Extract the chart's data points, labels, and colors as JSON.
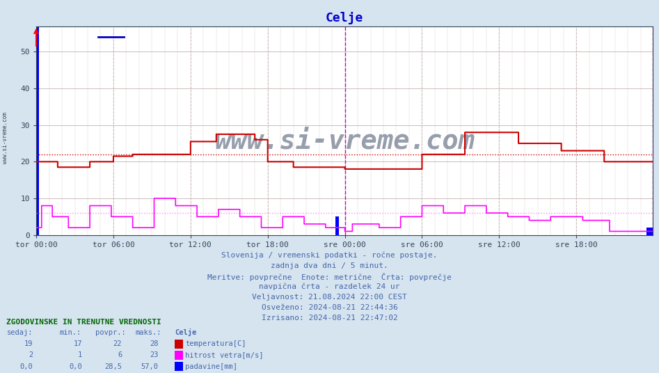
{
  "title": "Celje",
  "title_color": "#0000cc",
  "bg_color": "#d6e4f0",
  "plot_bg_color": "#ffffff",
  "grid_color": "#ccbbbb",
  "ylim": [
    0,
    57
  ],
  "yticks": [
    0,
    10,
    20,
    30,
    40,
    50
  ],
  "xlabel_ticks": [
    "tor 00:00",
    "tor 06:00",
    "tor 12:00",
    "tor 18:00",
    "sre 00:00",
    "sre 06:00",
    "sre 12:00",
    "sre 18:00"
  ],
  "temp_avg": 22,
  "temp_color": "#cc0000",
  "wind_avg": 6,
  "wind_color": "#ff00ff",
  "rain_color": "#0000ff",
  "avg_line_temp_color": "#cc0000",
  "avg_line_wind_color": "#ff88ff",
  "vline_color": "#cc00cc",
  "subtitle_lines": [
    "Slovenija / vremenski podatki - ročne postaje.",
    "zadnja dva dni / 5 minut.",
    "Meritve: povprečne  Enote: metrične  Črta: povprečje",
    "navpična črta - razdelek 24 ur",
    "Veljavnost: 21.08.2024 22:00 CEST",
    "Osveženo: 2024-08-21 22:44:36",
    "Izrisano: 2024-08-21 22:47:02"
  ],
  "legend_title": "ZGODOVINSKE IN TRENUTNE VREDNOSTI",
  "legend_headers": [
    "sedaj:",
    "min.:",
    "povpr.:",
    "maks.:"
  ],
  "legend_station": "Celje",
  "legend_data": [
    {
      "sedaj": "19",
      "min": "17",
      "povpr": "22",
      "maks": "28",
      "label": "temperatura[C]",
      "color": "#cc0000"
    },
    {
      "sedaj": "2",
      "min": "1",
      "povpr": "6",
      "maks": "23",
      "label": "hitrost vetra[m/s]",
      "color": "#ff00ff"
    },
    {
      "sedaj": "0,0",
      "min": "0,0",
      "povpr": "28,5",
      "maks": "57,0",
      "label": "padavine[mm]",
      "color": "#0000ff"
    }
  ],
  "n_points": 576,
  "temp_min": 17,
  "temp_max": 28,
  "wind_max": 23,
  "rain_max": 57
}
